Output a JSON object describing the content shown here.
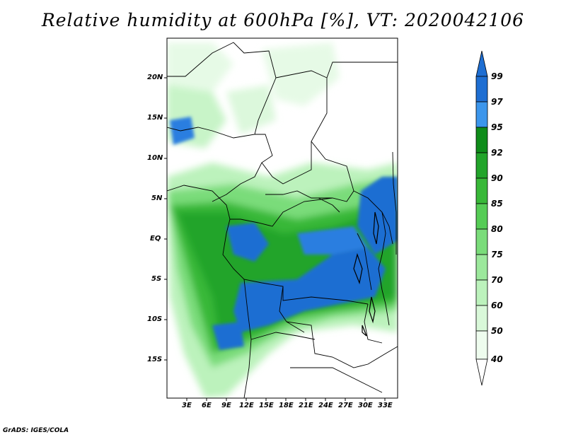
{
  "title": "Relative humidity at 600hPa [%], VT: 2020042106",
  "credit": "GrADS: IGES/COLA",
  "lat_labels": [
    "20N",
    "15N",
    "10N",
    "5N",
    "EQ",
    "5S",
    "10S",
    "15S"
  ],
  "lon_labels": [
    "3E",
    "6E",
    "9E",
    "12E",
    "15E",
    "18E",
    "21E",
    "24E",
    "27E",
    "30E",
    "33E"
  ],
  "colorbar": {
    "labels": [
      "99",
      "97",
      "95",
      "92",
      "90",
      "85",
      "80",
      "75",
      "70",
      "60",
      "50",
      "40"
    ],
    "colors": [
      "#1e6ed2",
      "#2c7ee0",
      "#3c96ec",
      "#0f8c1a",
      "#22a42a",
      "#38b838",
      "#55cc55",
      "#7adc7a",
      "#9ce89c",
      "#bcf2bc",
      "#d9f8d9",
      "#eefcee"
    ]
  },
  "palette": {
    "land_white": "#ffffff",
    "ocean_light": "#e6fae6",
    "boundary": "#000000"
  }
}
